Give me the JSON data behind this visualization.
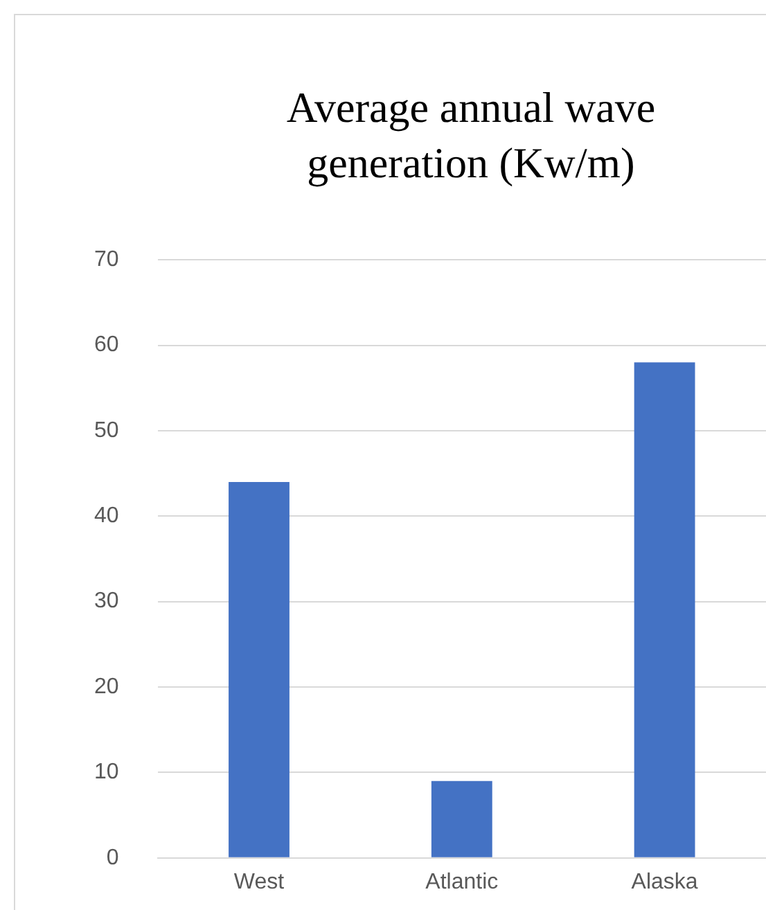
{
  "chart_data": {
    "type": "bar",
    "title": "Average annual wave generation (Kw/m)",
    "categories": [
      "West",
      "Atlantic",
      "Alaska"
    ],
    "values": [
      44,
      9,
      58
    ],
    "color": "#4472c4",
    "ylim": [
      0,
      70
    ],
    "yticks": [
      0,
      10,
      20,
      30,
      40,
      50,
      60,
      70
    ],
    "grid": "y"
  }
}
